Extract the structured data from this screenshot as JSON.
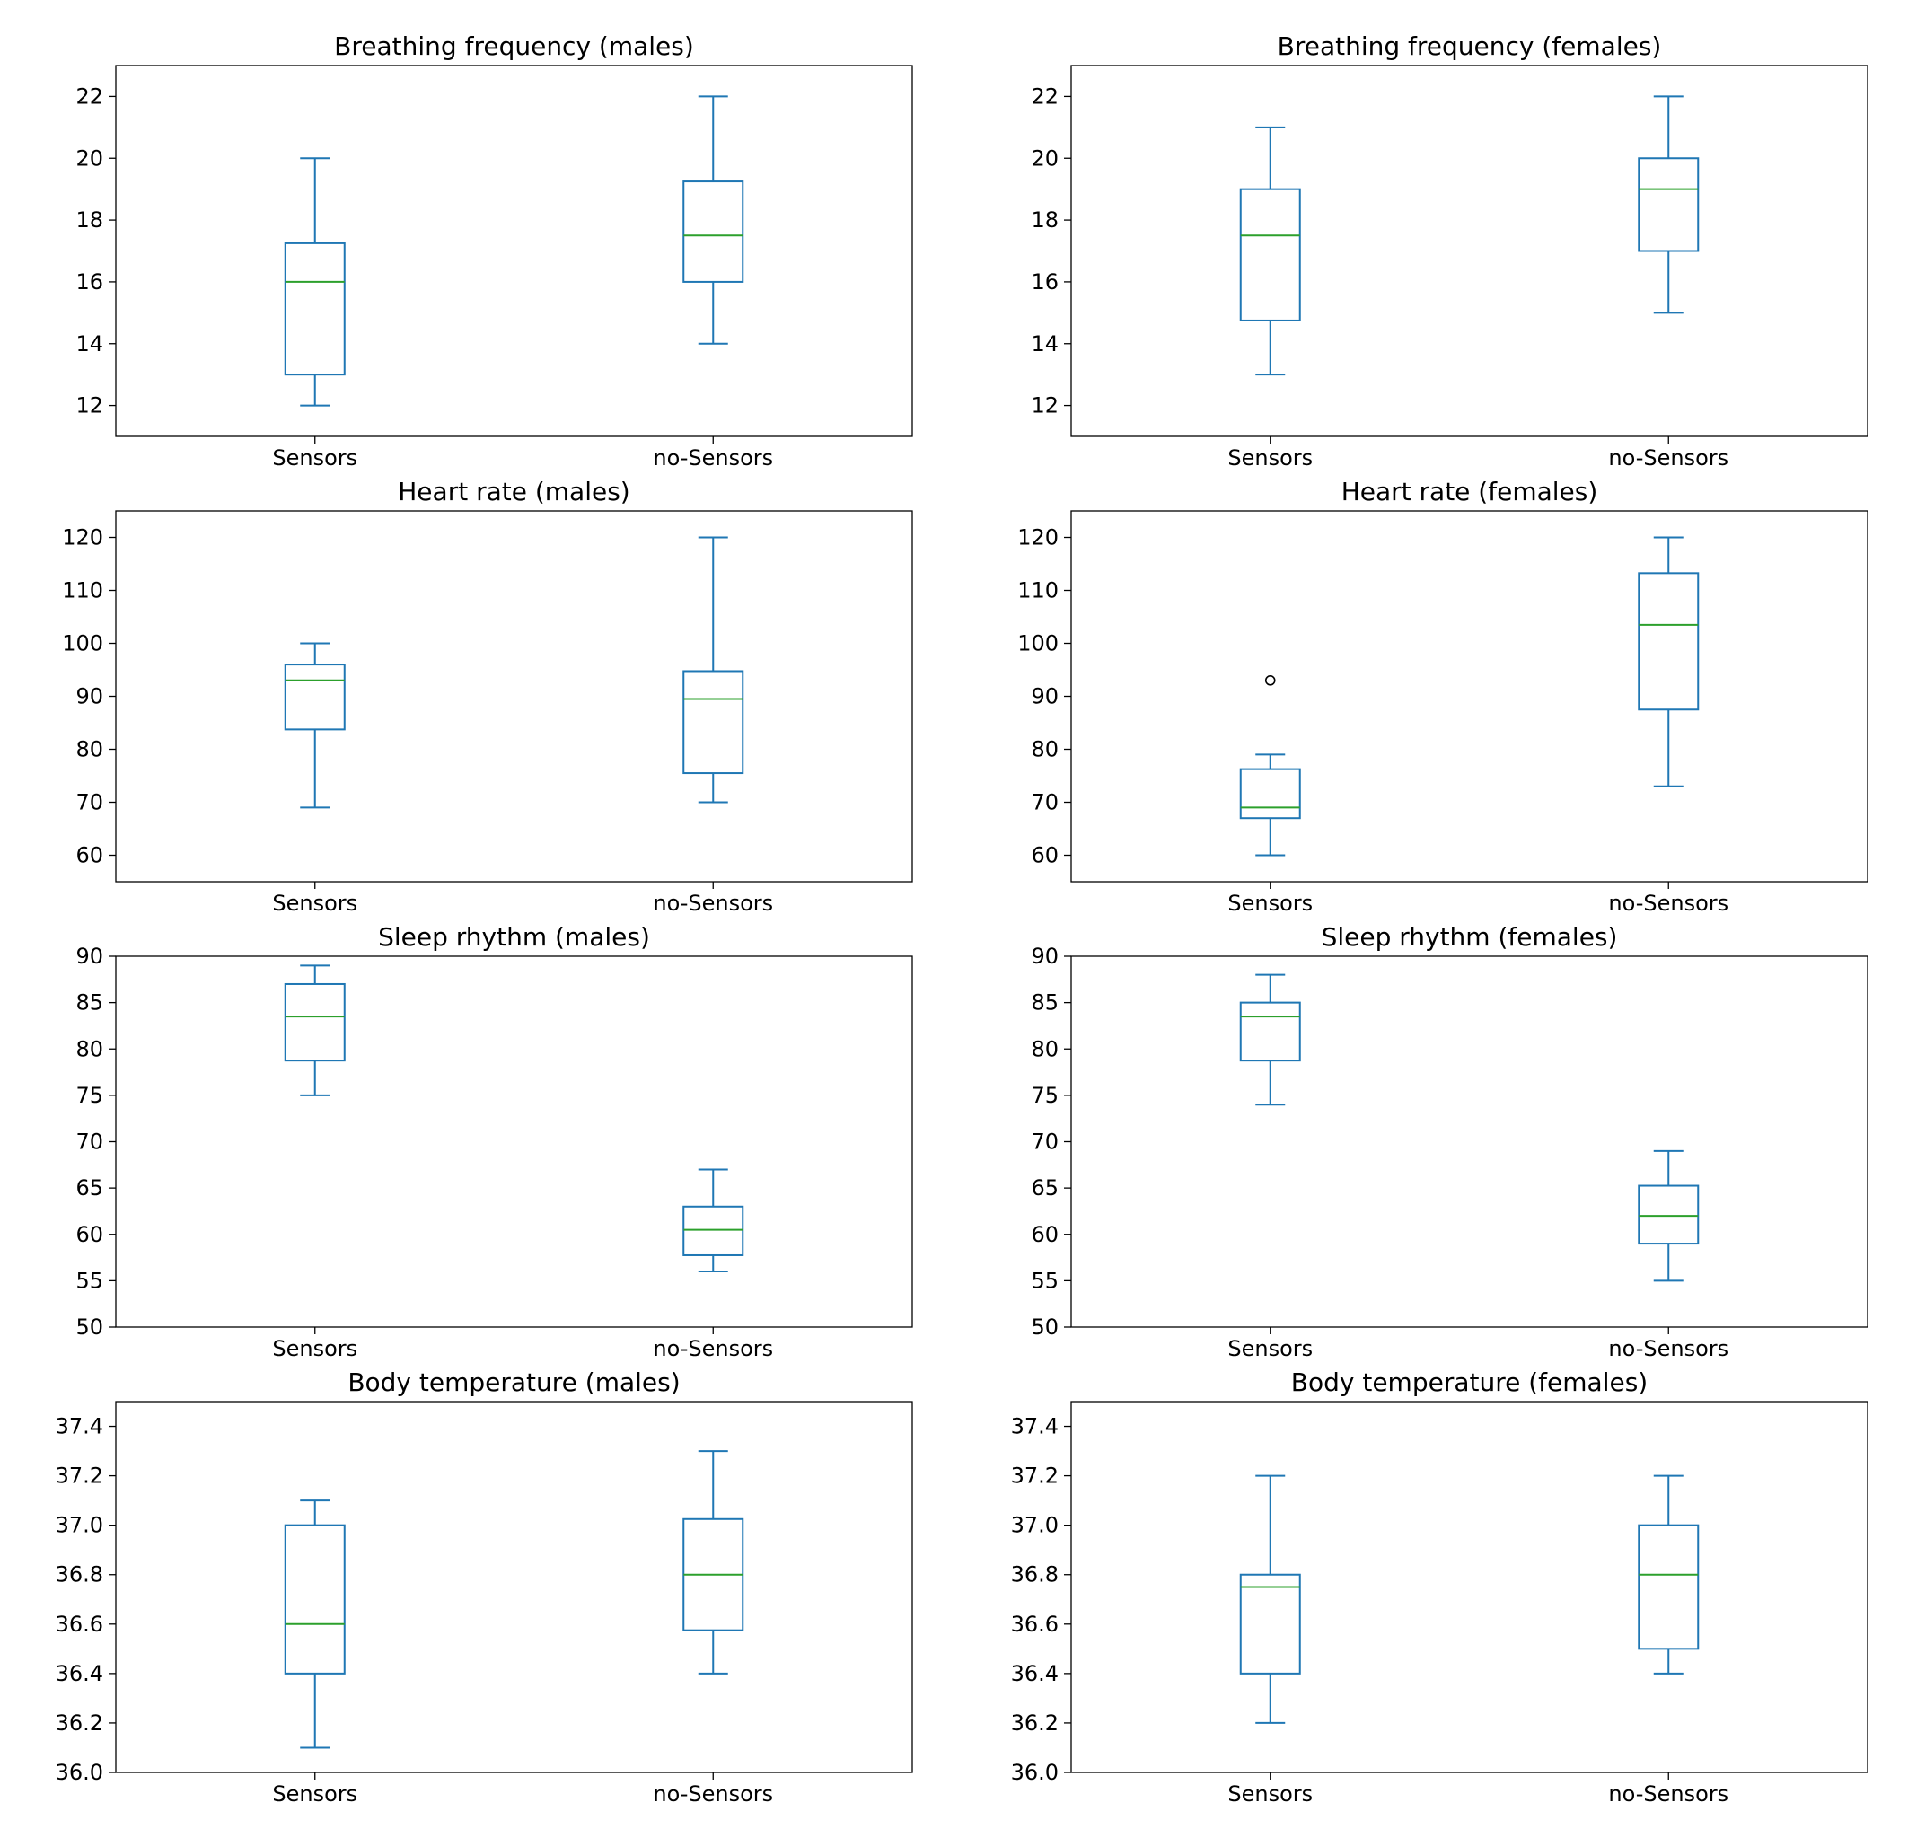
{
  "colors": {
    "box": "#1f77b4",
    "median": "#2ca02c",
    "axis": "#000000",
    "flier": "#000000"
  },
  "chart_data": [
    {
      "type": "box",
      "title": "Breathing frequency (males)",
      "categories": [
        "Sensors",
        "no-Sensors"
      ],
      "ylim": [
        11,
        23
      ],
      "yticks": [
        12,
        14,
        16,
        18,
        20,
        22
      ],
      "ytick_labels": [
        "12",
        "14",
        "16",
        "18",
        "20",
        "22"
      ],
      "boxes": [
        {
          "name": "Sensors",
          "whisker_low": 12,
          "q1": 13,
          "median": 16,
          "q3": 17.25,
          "whisker_high": 20,
          "fliers": []
        },
        {
          "name": "no-Sensors",
          "whisker_low": 14,
          "q1": 16,
          "median": 17.5,
          "q3": 19.25,
          "whisker_high": 22,
          "fliers": []
        }
      ]
    },
    {
      "type": "box",
      "title": "Breathing frequency (females)",
      "categories": [
        "Sensors",
        "no-Sensors"
      ],
      "ylim": [
        11,
        23
      ],
      "yticks": [
        12,
        14,
        16,
        18,
        20,
        22
      ],
      "ytick_labels": [
        "12",
        "14",
        "16",
        "18",
        "20",
        "22"
      ],
      "boxes": [
        {
          "name": "Sensors",
          "whisker_low": 13,
          "q1": 14.75,
          "median": 17.5,
          "q3": 19,
          "whisker_high": 21,
          "fliers": []
        },
        {
          "name": "no-Sensors",
          "whisker_low": 15,
          "q1": 17,
          "median": 19,
          "q3": 20,
          "whisker_high": 22,
          "fliers": []
        }
      ]
    },
    {
      "type": "box",
      "title": "Heart rate (males)",
      "categories": [
        "Sensors",
        "no-Sensors"
      ],
      "ylim": [
        55,
        125
      ],
      "yticks": [
        60,
        70,
        80,
        90,
        100,
        110,
        120
      ],
      "ytick_labels": [
        "60",
        "70",
        "80",
        "90",
        "100",
        "110",
        "120"
      ],
      "boxes": [
        {
          "name": "Sensors",
          "whisker_low": 69,
          "q1": 83.75,
          "median": 93,
          "q3": 96,
          "whisker_high": 100,
          "fliers": []
        },
        {
          "name": "no-Sensors",
          "whisker_low": 70,
          "q1": 75.5,
          "median": 89.5,
          "q3": 94.75,
          "whisker_high": 120,
          "fliers": []
        }
      ]
    },
    {
      "type": "box",
      "title": "Heart rate (females)",
      "categories": [
        "Sensors",
        "no-Sensors"
      ],
      "ylim": [
        55,
        125
      ],
      "yticks": [
        60,
        70,
        80,
        90,
        100,
        110,
        120
      ],
      "ytick_labels": [
        "60",
        "70",
        "80",
        "90",
        "100",
        "110",
        "120"
      ],
      "boxes": [
        {
          "name": "Sensors",
          "whisker_low": 60,
          "q1": 67,
          "median": 69,
          "q3": 76.25,
          "whisker_high": 79,
          "fliers": [
            93
          ]
        },
        {
          "name": "no-Sensors",
          "whisker_low": 73,
          "q1": 87.5,
          "median": 103.5,
          "q3": 113.25,
          "whisker_high": 120,
          "fliers": []
        }
      ]
    },
    {
      "type": "box",
      "title": "Sleep rhythm (males)",
      "categories": [
        "Sensors",
        "no-Sensors"
      ],
      "ylim": [
        50,
        90
      ],
      "yticks": [
        50,
        55,
        60,
        65,
        70,
        75,
        80,
        85,
        90
      ],
      "ytick_labels": [
        "50",
        "55",
        "60",
        "65",
        "70",
        "75",
        "80",
        "85",
        "90"
      ],
      "boxes": [
        {
          "name": "Sensors",
          "whisker_low": 75,
          "q1": 78.75,
          "median": 83.5,
          "q3": 87,
          "whisker_high": 89,
          "fliers": []
        },
        {
          "name": "no-Sensors",
          "whisker_low": 56,
          "q1": 57.75,
          "median": 60.5,
          "q3": 63,
          "whisker_high": 67,
          "fliers": []
        }
      ]
    },
    {
      "type": "box",
      "title": "Sleep rhythm (females)",
      "categories": [
        "Sensors",
        "no-Sensors"
      ],
      "ylim": [
        50,
        90
      ],
      "yticks": [
        50,
        55,
        60,
        65,
        70,
        75,
        80,
        85,
        90
      ],
      "ytick_labels": [
        "50",
        "55",
        "60",
        "65",
        "70",
        "75",
        "80",
        "85",
        "90"
      ],
      "boxes": [
        {
          "name": "Sensors",
          "whisker_low": 74,
          "q1": 78.75,
          "median": 83.5,
          "q3": 85,
          "whisker_high": 88,
          "fliers": []
        },
        {
          "name": "no-Sensors",
          "whisker_low": 55,
          "q1": 59,
          "median": 62,
          "q3": 65.25,
          "whisker_high": 69,
          "fliers": []
        }
      ]
    },
    {
      "type": "box",
      "title": "Body temperature (males)",
      "categories": [
        "Sensors",
        "no-Sensors"
      ],
      "ylim": [
        36.0,
        37.5
      ],
      "yticks": [
        36.0,
        36.2,
        36.4,
        36.6,
        36.8,
        37.0,
        37.2,
        37.4
      ],
      "ytick_labels": [
        "36.0",
        "36.2",
        "36.4",
        "36.6",
        "36.8",
        "37.0",
        "37.2",
        "37.4"
      ],
      "boxes": [
        {
          "name": "Sensors",
          "whisker_low": 36.1,
          "q1": 36.4,
          "median": 36.6,
          "q3": 37.0,
          "whisker_high": 37.1,
          "fliers": []
        },
        {
          "name": "no-Sensors",
          "whisker_low": 36.4,
          "q1": 36.575,
          "median": 36.8,
          "q3": 37.025,
          "whisker_high": 37.3,
          "fliers": []
        }
      ]
    },
    {
      "type": "box",
      "title": "Body temperature (females)",
      "categories": [
        "Sensors",
        "no-Sensors"
      ],
      "ylim": [
        36.0,
        37.5
      ],
      "yticks": [
        36.0,
        36.2,
        36.4,
        36.6,
        36.8,
        37.0,
        37.2,
        37.4
      ],
      "ytick_labels": [
        "36.0",
        "36.2",
        "36.4",
        "36.6",
        "36.8",
        "37.0",
        "37.2",
        "37.4"
      ],
      "boxes": [
        {
          "name": "Sensors",
          "whisker_low": 36.2,
          "q1": 36.4,
          "median": 36.75,
          "q3": 36.8,
          "whisker_high": 37.2,
          "fliers": []
        },
        {
          "name": "no-Sensors",
          "whisker_low": 36.4,
          "q1": 36.5,
          "median": 36.8,
          "q3": 37.0,
          "whisker_high": 37.2,
          "fliers": []
        }
      ]
    }
  ]
}
